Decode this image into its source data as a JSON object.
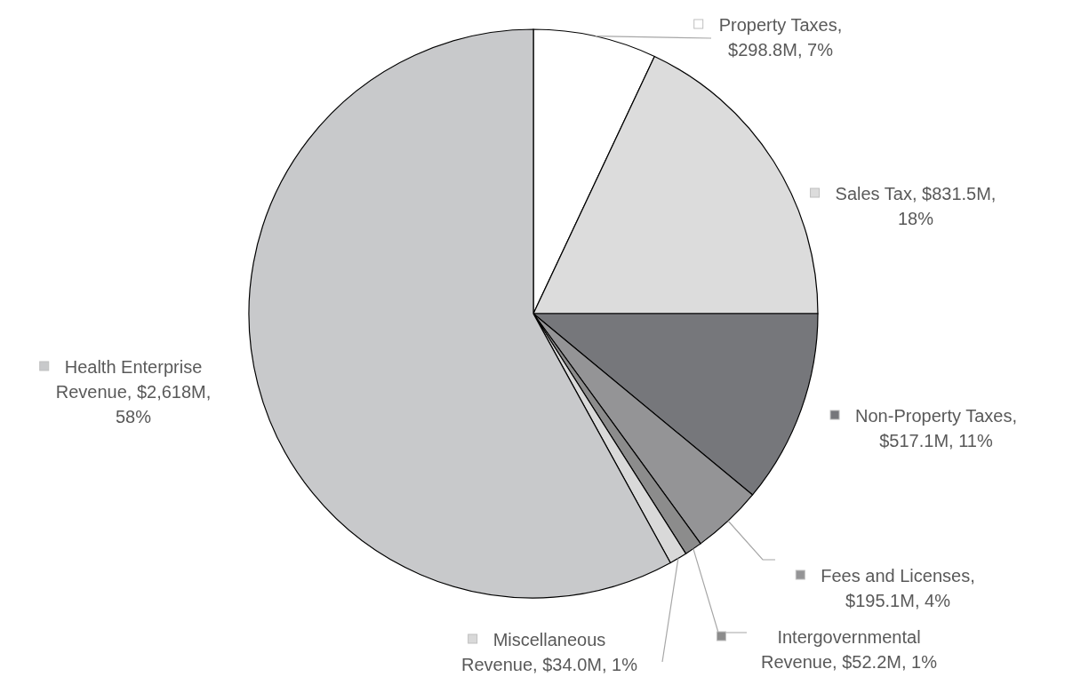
{
  "chart_data": {
    "type": "pie",
    "categories": [
      "Property Taxes, $298.8M, 7%",
      "Sales Tax, $831.5M, 18%",
      "Non-Property Taxes, $517.1M, 11%",
      "Fees and Licenses, $195.1M, 4%",
      "Intergovernmental Revenue, $52.2M, 1%",
      "Miscellaneous Revenue, $34.0M, 1%",
      "Health Enterprise Revenue, $2,618M, 58%"
    ],
    "values": [
      7,
      18,
      11,
      4,
      1,
      1,
      58
    ],
    "colors": [
      "#ffffff",
      "#dcdcdc",
      "#76777b",
      "#949496",
      "#8c8c8c",
      "#d9d9d9",
      "#c8c9cb"
    ],
    "legend": "right"
  }
}
